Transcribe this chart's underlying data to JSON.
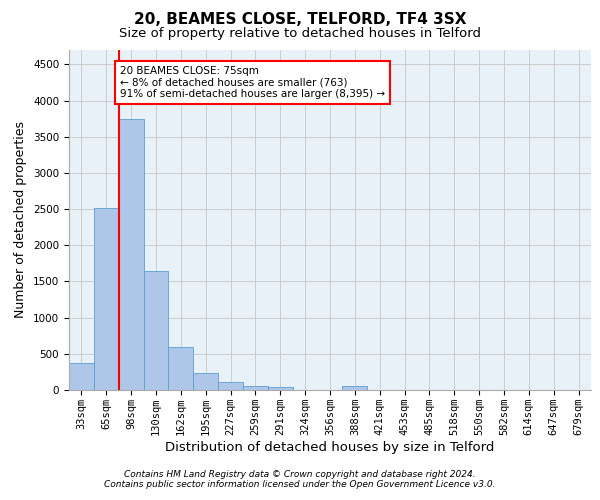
{
  "title_line1": "20, BEAMES CLOSE, TELFORD, TF4 3SX",
  "title_line2": "Size of property relative to detached houses in Telford",
  "xlabel": "Distribution of detached houses by size in Telford",
  "ylabel": "Number of detached properties",
  "categories": [
    "33sqm",
    "65sqm",
    "98sqm",
    "130sqm",
    "162sqm",
    "195sqm",
    "227sqm",
    "259sqm",
    "291sqm",
    "324sqm",
    "356sqm",
    "388sqm",
    "421sqm",
    "453sqm",
    "485sqm",
    "518sqm",
    "550sqm",
    "582sqm",
    "614sqm",
    "647sqm",
    "679sqm"
  ],
  "values": [
    370,
    2510,
    3740,
    1640,
    590,
    230,
    105,
    60,
    35,
    0,
    0,
    55,
    0,
    0,
    0,
    0,
    0,
    0,
    0,
    0,
    0
  ],
  "bar_color": "#aec6e8",
  "bar_edge_color": "#5a9fd4",
  "subject_label": "20 BEAMES CLOSE: 75sqm",
  "annotation_line1": "← 8% of detached houses are smaller (763)",
  "annotation_line2": "91% of semi-detached houses are larger (8,395) →",
  "annotation_box_color": "white",
  "annotation_box_edge_color": "red",
  "vline_color": "red",
  "vline_x": 1.5,
  "ylim": [
    0,
    4700
  ],
  "yticks": [
    0,
    500,
    1000,
    1500,
    2000,
    2500,
    3000,
    3500,
    4000,
    4500
  ],
  "grid_color": "#cccccc",
  "background_color": "#e8f0f8",
  "footer_line1": "Contains HM Land Registry data © Crown copyright and database right 2024.",
  "footer_line2": "Contains public sector information licensed under the Open Government Licence v3.0.",
  "title_fontsize": 11,
  "subtitle_fontsize": 9.5,
  "axis_label_fontsize": 9,
  "tick_fontsize": 7.5,
  "annotation_fontsize": 7.5,
  "footer_fontsize": 6.5
}
